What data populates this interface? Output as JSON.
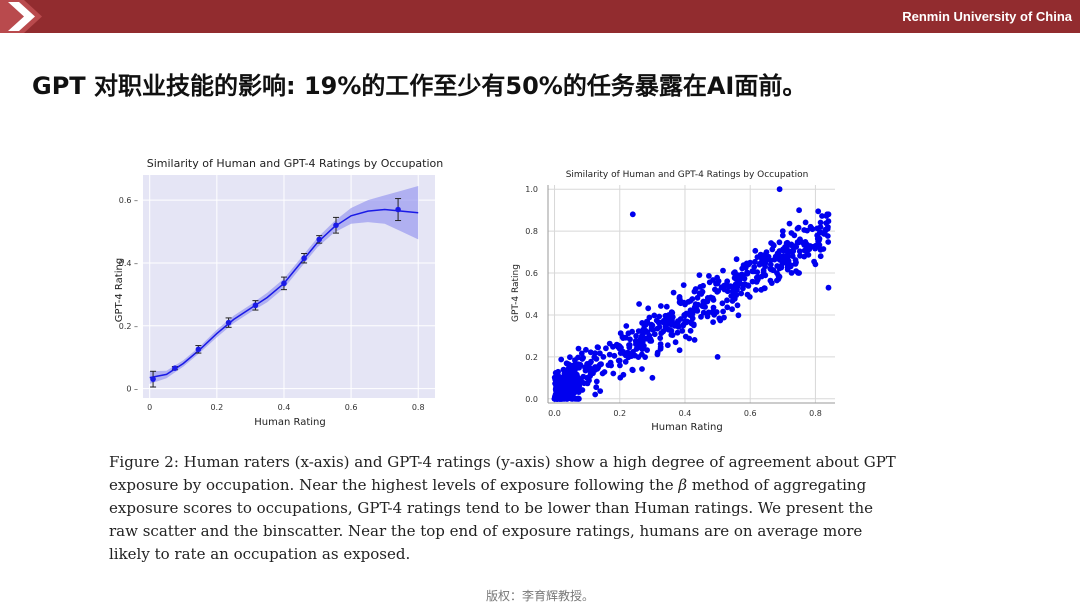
{
  "header": {
    "university": "Renmin University of China",
    "bar_color": "#922c2f"
  },
  "slide": {
    "title": "GPT 对职业技能的影响: 19%的工作至少有50%的任务暴露在AI面前。"
  },
  "chart_data": [
    {
      "type": "line",
      "title": "Similarity of Human and GPT-4 Ratings by Occupation",
      "xlabel": "Human Rating",
      "ylabel": "GPT-4 Rating",
      "xlim": [
        -0.02,
        0.85
      ],
      "ylim": [
        -0.03,
        0.68
      ],
      "xticks": [
        "0",
        "0.2",
        "0.4",
        "0.6",
        "0.8"
      ],
      "yticks": [
        "0",
        "0.2",
        "0.4",
        "0.6"
      ],
      "grid": true,
      "background": "#e5e5f5",
      "color": "#1a1ae6",
      "binned_points": [
        {
          "x": 0.01,
          "y": 0.03,
          "err": 0.025
        },
        {
          "x": 0.075,
          "y": 0.065,
          "err": 0.005
        },
        {
          "x": 0.145,
          "y": 0.125,
          "err": 0.012
        },
        {
          "x": 0.235,
          "y": 0.21,
          "err": 0.015
        },
        {
          "x": 0.315,
          "y": 0.265,
          "err": 0.015
        },
        {
          "x": 0.4,
          "y": 0.335,
          "err": 0.02
        },
        {
          "x": 0.46,
          "y": 0.415,
          "err": 0.015
        },
        {
          "x": 0.505,
          "y": 0.475,
          "err": 0.012
        },
        {
          "x": 0.555,
          "y": 0.52,
          "err": 0.025
        },
        {
          "x": 0.74,
          "y": 0.57,
          "err": 0.035
        }
      ],
      "fit_curve": {
        "x": [
          0.0,
          0.05,
          0.1,
          0.15,
          0.2,
          0.25,
          0.3,
          0.35,
          0.4,
          0.45,
          0.5,
          0.55,
          0.6,
          0.65,
          0.7,
          0.75,
          0.8
        ],
        "y": [
          0.035,
          0.045,
          0.08,
          0.125,
          0.175,
          0.22,
          0.255,
          0.29,
          0.335,
          0.4,
          0.465,
          0.515,
          0.55,
          0.565,
          0.57,
          0.565,
          0.56
        ],
        "band": [
          0.02,
          0.012,
          0.01,
          0.01,
          0.012,
          0.012,
          0.012,
          0.015,
          0.015,
          0.015,
          0.015,
          0.018,
          0.025,
          0.035,
          0.045,
          0.065,
          0.085
        ]
      }
    },
    {
      "type": "scatter",
      "title": "Similarity of Human and GPT-4 Ratings by Occupation",
      "xlabel": "Human Rating",
      "ylabel": "GPT-4 Rating",
      "xlim": [
        -0.02,
        0.86
      ],
      "ylim": [
        -0.02,
        1.02
      ],
      "xticks": [
        "0.0",
        "0.2",
        "0.4",
        "0.6",
        "0.8"
      ],
      "yticks": [
        "0.0",
        "0.2",
        "0.4",
        "0.6",
        "0.8",
        "1.0"
      ],
      "grid": true,
      "color": "#0000ee",
      "n_points": 700,
      "sample_points": [
        [
          0.0,
          0.0
        ],
        [
          0.02,
          0.05
        ],
        [
          0.05,
          0.1
        ],
        [
          0.1,
          0.1
        ],
        [
          0.15,
          0.2
        ],
        [
          0.2,
          0.25
        ],
        [
          0.25,
          0.3
        ],
        [
          0.3,
          0.35
        ],
        [
          0.35,
          0.4
        ],
        [
          0.4,
          0.45
        ],
        [
          0.45,
          0.5
        ],
        [
          0.5,
          0.55
        ],
        [
          0.55,
          0.6
        ],
        [
          0.6,
          0.65
        ],
        [
          0.65,
          0.7
        ],
        [
          0.7,
          0.8
        ],
        [
          0.75,
          0.9
        ],
        [
          0.69,
          1.0
        ],
        [
          0.84,
          0.88
        ],
        [
          0.24,
          0.88
        ],
        [
          0.84,
          0.53
        ],
        [
          0.5,
          0.2
        ],
        [
          0.75,
          0.6
        ],
        [
          0.3,
          0.1
        ]
      ]
    }
  ],
  "caption": {
    "before_beta": "Figure 2: Human raters (x-axis) and GPT-4 ratings (y-axis) show a high degree of agreement about GPT exposure by occupation. Near the highest levels of exposure following the ",
    "beta": "β",
    "after_beta": " method of aggregating exposure scores to occupations, GPT-4 ratings tend to be lower than Human ratings. We present the raw scatter and the binscatter. Near the top end of exposure ratings, humans are on average more likely to rate an occupation as exposed."
  },
  "footer": {
    "copyright": "版权：李育辉教授。"
  }
}
